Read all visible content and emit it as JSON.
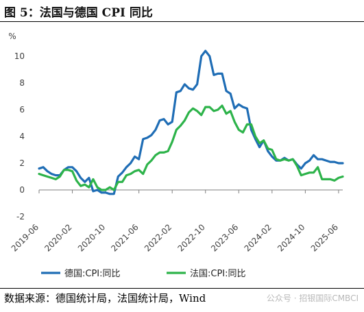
{
  "figure_title": "图 5：法国与德国 CPI 同比",
  "source_text": "数据来源：德国统计局，法国统计局，Wind",
  "watermark": "公众号 · 招银国际CMBCI",
  "colors": {
    "germany": "#1f6db5",
    "france": "#2db34a",
    "axis": "#7f7f7f",
    "text": "#404040"
  },
  "chart_data": {
    "type": "line",
    "ylabel": "%",
    "ylim": [
      -2,
      10
    ],
    "yticks": [
      -2,
      0,
      2,
      4,
      6,
      8,
      10
    ],
    "grid": false,
    "legend_position": "bottom",
    "xlim": [
      "2019-06",
      "2025-07"
    ],
    "x_tick_labels": [
      "2019-06",
      "2020-02",
      "2020-10",
      "2021-06",
      "2022-02",
      "2022-10",
      "2023-06",
      "2024-02",
      "2024-10",
      "2025-06"
    ],
    "x": [
      "2019-06",
      "2019-07",
      "2019-08",
      "2019-09",
      "2019-10",
      "2019-11",
      "2019-12",
      "2020-01",
      "2020-02",
      "2020-03",
      "2020-04",
      "2020-05",
      "2020-06",
      "2020-07",
      "2020-08",
      "2020-09",
      "2020-10",
      "2020-11",
      "2020-12",
      "2021-01",
      "2021-02",
      "2021-03",
      "2021-04",
      "2021-05",
      "2021-06",
      "2021-07",
      "2021-08",
      "2021-09",
      "2021-10",
      "2021-11",
      "2021-12",
      "2022-01",
      "2022-02",
      "2022-03",
      "2022-04",
      "2022-05",
      "2022-06",
      "2022-07",
      "2022-08",
      "2022-09",
      "2022-10",
      "2022-11",
      "2022-12",
      "2023-01",
      "2023-02",
      "2023-03",
      "2023-04",
      "2023-05",
      "2023-06",
      "2023-07",
      "2023-08",
      "2023-09",
      "2023-10",
      "2023-11",
      "2023-12",
      "2024-01",
      "2024-02",
      "2024-03",
      "2024-04",
      "2024-05",
      "2024-06",
      "2024-07",
      "2024-08",
      "2024-09",
      "2024-10",
      "2024-11",
      "2024-12",
      "2025-01",
      "2025-02",
      "2025-03",
      "2025-04",
      "2025-05",
      "2025-06",
      "2025-07"
    ],
    "series": [
      {
        "name": "德国:CPI:同比",
        "color_key": "germany",
        "values": [
          1.6,
          1.7,
          1.4,
          1.2,
          1.1,
          1.1,
          1.5,
          1.7,
          1.7,
          1.4,
          0.9,
          0.6,
          0.9,
          -0.1,
          0.0,
          -0.2,
          -0.2,
          -0.3,
          -0.3,
          1.0,
          1.3,
          1.7,
          2.0,
          2.5,
          2.3,
          3.8,
          3.9,
          4.1,
          4.5,
          5.2,
          5.3,
          4.9,
          5.1,
          7.3,
          7.4,
          7.9,
          7.6,
          7.5,
          7.9,
          10.0,
          10.4,
          10.0,
          8.6,
          8.7,
          8.7,
          7.4,
          7.2,
          6.1,
          6.4,
          6.2,
          6.1,
          4.5,
          3.8,
          3.2,
          3.7,
          2.9,
          2.5,
          2.2,
          2.2,
          2.4,
          2.2,
          2.3,
          1.9,
          1.6,
          2.0,
          2.2,
          2.6,
          2.3,
          2.3,
          2.2,
          2.1,
          2.1,
          2.0,
          2.0
        ]
      },
      {
        "name": "法国:CPI:同比",
        "color_key": "france",
        "values": [
          1.2,
          1.1,
          1.0,
          0.9,
          0.8,
          1.0,
          1.5,
          1.5,
          1.4,
          0.7,
          0.3,
          0.4,
          0.2,
          0.8,
          0.2,
          0.0,
          0.0,
          0.2,
          0.0,
          0.6,
          0.6,
          1.1,
          1.2,
          1.4,
          1.5,
          1.2,
          1.9,
          2.2,
          2.6,
          2.8,
          2.8,
          2.9,
          3.6,
          4.5,
          4.8,
          5.2,
          5.8,
          6.1,
          5.9,
          5.6,
          6.2,
          6.2,
          5.9,
          6.0,
          6.3,
          5.7,
          5.9,
          5.1,
          4.5,
          4.3,
          4.9,
          4.9,
          4.0,
          3.5,
          3.7,
          3.1,
          3.0,
          2.3,
          2.2,
          2.3,
          2.2,
          2.3,
          1.8,
          1.1,
          1.2,
          1.3,
          1.3,
          1.7,
          0.8,
          0.8,
          0.8,
          0.7,
          0.9,
          1.0
        ]
      }
    ]
  }
}
